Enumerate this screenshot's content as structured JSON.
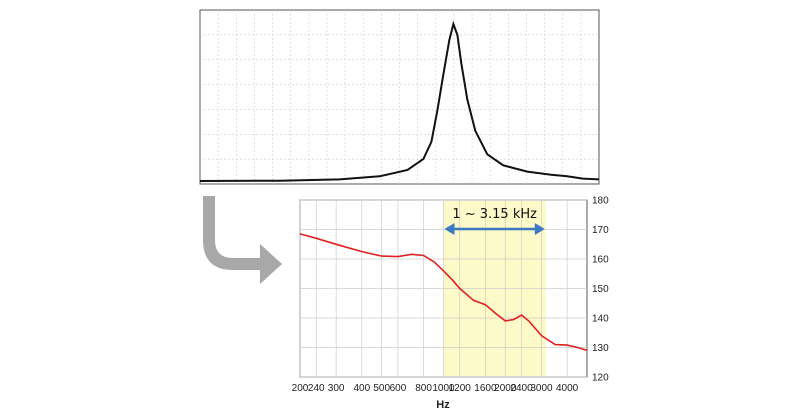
{
  "chart_data": [
    {
      "type": "line",
      "title": "",
      "xlabel": "",
      "ylabel": "",
      "grid": true,
      "series": [
        {
          "color": "#111111",
          "points": [
            [
              0,
              0.0
            ],
            [
              0.2,
              0.002
            ],
            [
              0.35,
              0.01
            ],
            [
              0.45,
              0.03
            ],
            [
              0.52,
              0.07
            ],
            [
              0.56,
              0.14
            ],
            [
              0.58,
              0.25
            ],
            [
              0.595,
              0.45
            ],
            [
              0.61,
              0.68
            ],
            [
              0.625,
              0.9
            ],
            [
              0.635,
              1.0
            ],
            [
              0.645,
              0.93
            ],
            [
              0.655,
              0.75
            ],
            [
              0.67,
              0.52
            ],
            [
              0.69,
              0.32
            ],
            [
              0.72,
              0.17
            ],
            [
              0.76,
              0.1
            ],
            [
              0.82,
              0.06
            ],
            [
              0.88,
              0.04
            ],
            [
              0.92,
              0.03
            ],
            [
              0.96,
              0.015
            ],
            [
              1.0,
              0.01
            ]
          ]
        }
      ]
    },
    {
      "type": "line",
      "xlabel": "Hz",
      "ylabel": "",
      "x_scale": "log",
      "xlim": [
        200,
        5000
      ],
      "ylim": [
        120,
        180
      ],
      "x_ticks": [
        200,
        240,
        300,
        400,
        500,
        600,
        800,
        1000,
        1200,
        1600,
        2000,
        2400,
        3000,
        4000
      ],
      "x_tick_labels": [
        "200",
        "240",
        "300",
        "400",
        "500",
        "600",
        "800",
        "1000",
        "1200",
        "1600",
        "2000",
        "2400",
        "3000",
        "4000"
      ],
      "y_ticks": [
        120,
        130,
        140,
        150,
        160,
        170,
        180
      ],
      "y_axis_side": "right",
      "grid": true,
      "highlight": {
        "x_from": 1000,
        "x_to": 3150,
        "color": "#fdf9c8",
        "label": "1 ~ 3.15  kHz",
        "arrow_color": "#3a78c2"
      },
      "series": [
        {
          "color": "#e02020",
          "x": [
            200,
            240,
            300,
            400,
            500,
            600,
            700,
            800,
            900,
            1000,
            1100,
            1200,
            1400,
            1600,
            1800,
            2000,
            2200,
            2400,
            2600,
            3000,
            3500,
            4000,
            4500,
            5000
          ],
          "y": [
            168.5,
            167,
            165,
            162.5,
            161,
            160.8,
            161.6,
            161.2,
            159,
            156,
            153,
            150,
            146,
            144.5,
            141.5,
            139,
            139.5,
            141,
            139,
            134,
            131,
            130.8,
            130,
            129
          ]
        }
      ]
    }
  ],
  "colors": {
    "transition_arrow": "#a8a8a8",
    "grid": "#cccccc"
  }
}
